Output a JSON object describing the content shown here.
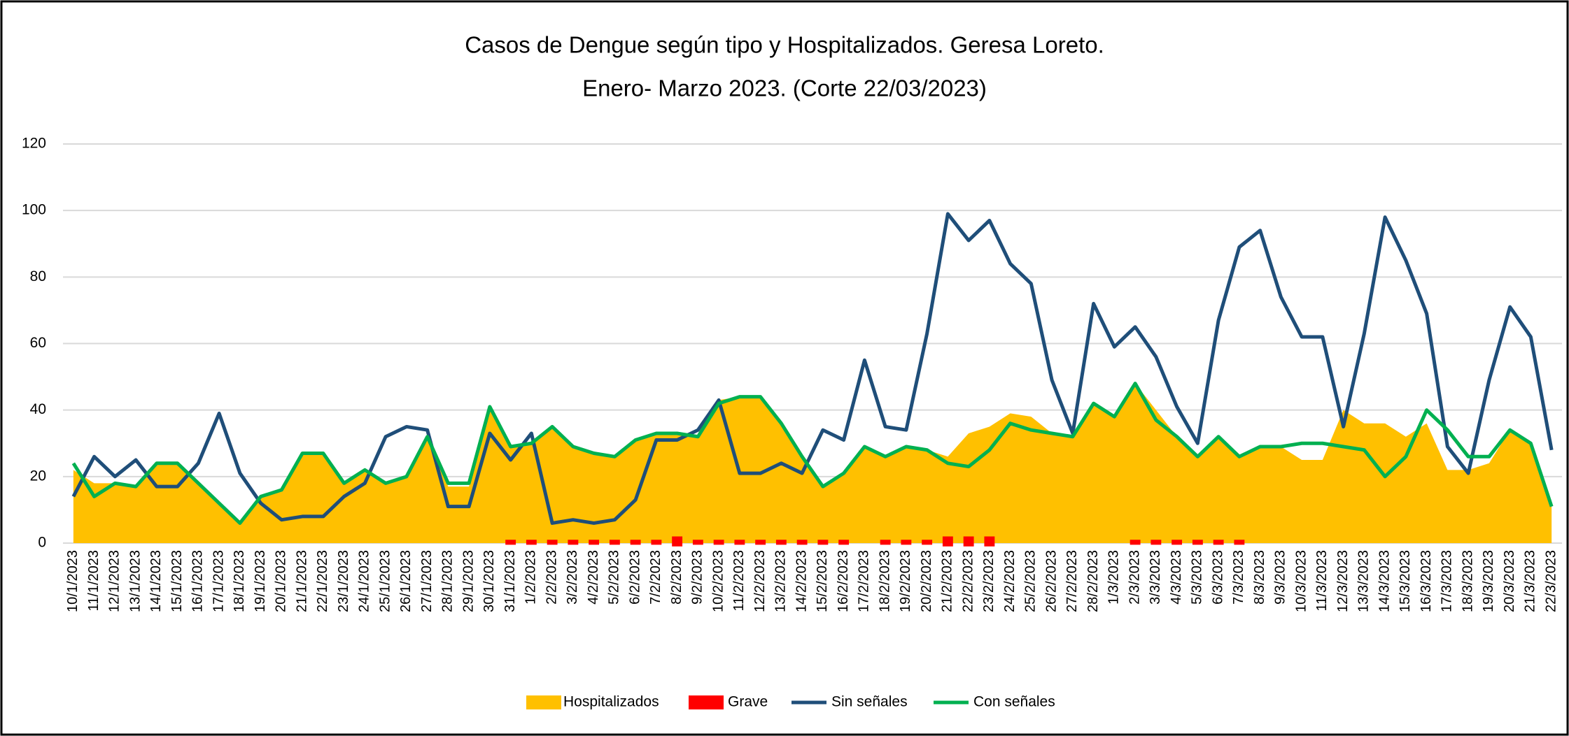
{
  "chart_data": {
    "type": "line",
    "title": "Casos de Dengue según tipo y Hospitalizados. Geresa Loreto.",
    "subtitle": "Enero- Marzo 2023. (Corte 22/03/2023)",
    "categories": [
      "10/1/2023",
      "11/1/2023",
      "12/1/2023",
      "13/1/2023",
      "14/1/2023",
      "15/1/2023",
      "16/1/2023",
      "17/1/2023",
      "18/1/2023",
      "19/1/2023",
      "20/1/2023",
      "21/1/2023",
      "22/1/2023",
      "23/1/2023",
      "24/1/2023",
      "25/1/2023",
      "26/1/2023",
      "27/1/2023",
      "28/1/2023",
      "29/1/2023",
      "30/1/2023",
      "31/1/2023",
      "1/2/2023",
      "2/2/2023",
      "3/2/2023",
      "4/2/2023",
      "5/2/2023",
      "6/2/2023",
      "7/2/2023",
      "8/2/2023",
      "9/2/2023",
      "10/2/2023",
      "11/2/2023",
      "12/2/2023",
      "13/2/2023",
      "14/2/2023",
      "15/2/2023",
      "16/2/2023",
      "17/2/2023",
      "18/2/2023",
      "19/2/2023",
      "20/2/2023",
      "21/2/2023",
      "22/2/2023",
      "23/2/2023",
      "24/2/2023",
      "25/2/2023",
      "26/2/2023",
      "27/2/2023",
      "28/2/2023",
      "1/3/2023",
      "2/3/2023",
      "3/3/2023",
      "4/3/2023",
      "5/3/2023",
      "6/3/2023",
      "7/3/2023",
      "8/3/2023",
      "9/3/2023",
      "10/3/2023",
      "11/3/2023",
      "12/3/2023",
      "13/3/2023",
      "14/3/2023",
      "15/3/2023",
      "16/3/2023",
      "17/3/2023",
      "18/3/2023",
      "19/3/2023",
      "20/3/2023",
      "21/3/2023",
      "22/3/2023"
    ],
    "series": [
      {
        "name": "Hospitalizados",
        "type": "area",
        "color": "#ffc000",
        "values": [
          22,
          18,
          18,
          17,
          24,
          24,
          18,
          12,
          6,
          14,
          16,
          27,
          27,
          18,
          22,
          18,
          20,
          32,
          17,
          17,
          40,
          29,
          30,
          35,
          29,
          27,
          26,
          31,
          33,
          33,
          32,
          43,
          44,
          44,
          36,
          26,
          17,
          21,
          29,
          26,
          29,
          28,
          26,
          33,
          35,
          39,
          38,
          33,
          32,
          42,
          38,
          48,
          40,
          32,
          26,
          32,
          26,
          29,
          29,
          25,
          25,
          40,
          36,
          36,
          32,
          36,
          22,
          22,
          24,
          34,
          30,
          11
        ]
      },
      {
        "name": "Grave",
        "type": "bar",
        "color": "#ff0000",
        "values": [
          0,
          0,
          0,
          0,
          0,
          0,
          0,
          0,
          0,
          0,
          0,
          0,
          0,
          0,
          0,
          0,
          0,
          0,
          0,
          0,
          0,
          1,
          1,
          1,
          1,
          1,
          1,
          1,
          1,
          2,
          1,
          1,
          1,
          1,
          1,
          1,
          1,
          1,
          0,
          1,
          1,
          1,
          2,
          2,
          2,
          0,
          0,
          0,
          0,
          0,
          0,
          1,
          1,
          1,
          1,
          1,
          1,
          0,
          0,
          0,
          0,
          0,
          0,
          0,
          0,
          0,
          0,
          0,
          0,
          0,
          0,
          0
        ]
      },
      {
        "name": "Sin señales",
        "type": "line",
        "color": "#1f4e79",
        "values": [
          14,
          26,
          20,
          25,
          17,
          17,
          24,
          39,
          21,
          12,
          7,
          8,
          8,
          14,
          18,
          32,
          35,
          34,
          11,
          11,
          33,
          25,
          33,
          6,
          7,
          6,
          7,
          13,
          31,
          31,
          34,
          43,
          21,
          21,
          24,
          21,
          34,
          31,
          55,
          35,
          34,
          63,
          99,
          91,
          97,
          84,
          78,
          49,
          33,
          72,
          59,
          65,
          56,
          41,
          30,
          67,
          89,
          94,
          74,
          62,
          62,
          35,
          63,
          98,
          85,
          69,
          29,
          21,
          49,
          71,
          62,
          28
        ]
      },
      {
        "name": "Con señales",
        "type": "line",
        "color": "#00b050",
        "values": [
          24,
          14,
          18,
          17,
          24,
          24,
          18,
          12,
          6,
          14,
          16,
          27,
          27,
          18,
          22,
          18,
          20,
          32,
          18,
          18,
          41,
          29,
          30,
          35,
          29,
          27,
          26,
          31,
          33,
          33,
          32,
          42,
          44,
          44,
          36,
          26,
          17,
          21,
          29,
          26,
          29,
          28,
          24,
          23,
          28,
          36,
          34,
          33,
          32,
          42,
          38,
          48,
          37,
          32,
          26,
          32,
          26,
          29,
          29,
          30,
          30,
          29,
          28,
          20,
          26,
          40,
          34,
          26,
          26,
          34,
          30,
          11
        ]
      }
    ],
    "ylim": [
      0,
      120
    ],
    "yticks": [
      0,
      20,
      40,
      60,
      80,
      100,
      120
    ],
    "grid": true
  }
}
